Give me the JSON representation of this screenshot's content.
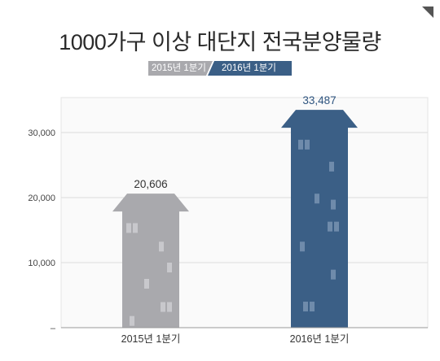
{
  "chart_data": {
    "type": "bar",
    "title": "1000가구 이상 대단지 전국분양물량",
    "categories": [
      "2015년 1분기",
      "2016년 1분기"
    ],
    "series": [
      {
        "name": "2015년 1분기",
        "values": [
          20606,
          null
        ]
      },
      {
        "name": "2016년 1분기",
        "values": [
          null,
          33487
        ]
      }
    ],
    "values": [
      20606,
      33487
    ],
    "value_labels": [
      "20,606",
      "33,487"
    ],
    "yticks": [
      "–",
      "10,000",
      "20,000",
      "30,000"
    ],
    "ylim": [
      0,
      37000
    ],
    "grid": true,
    "legend": "top",
    "colors": {
      "2015": "#a9a9ad",
      "2016": "#3b5f86",
      "window_2015": "#c8c8cc",
      "window_2016": "#6f8bab"
    }
  },
  "legend": {
    "items": [
      "2015년 1분기",
      "2016년 1분기"
    ]
  }
}
